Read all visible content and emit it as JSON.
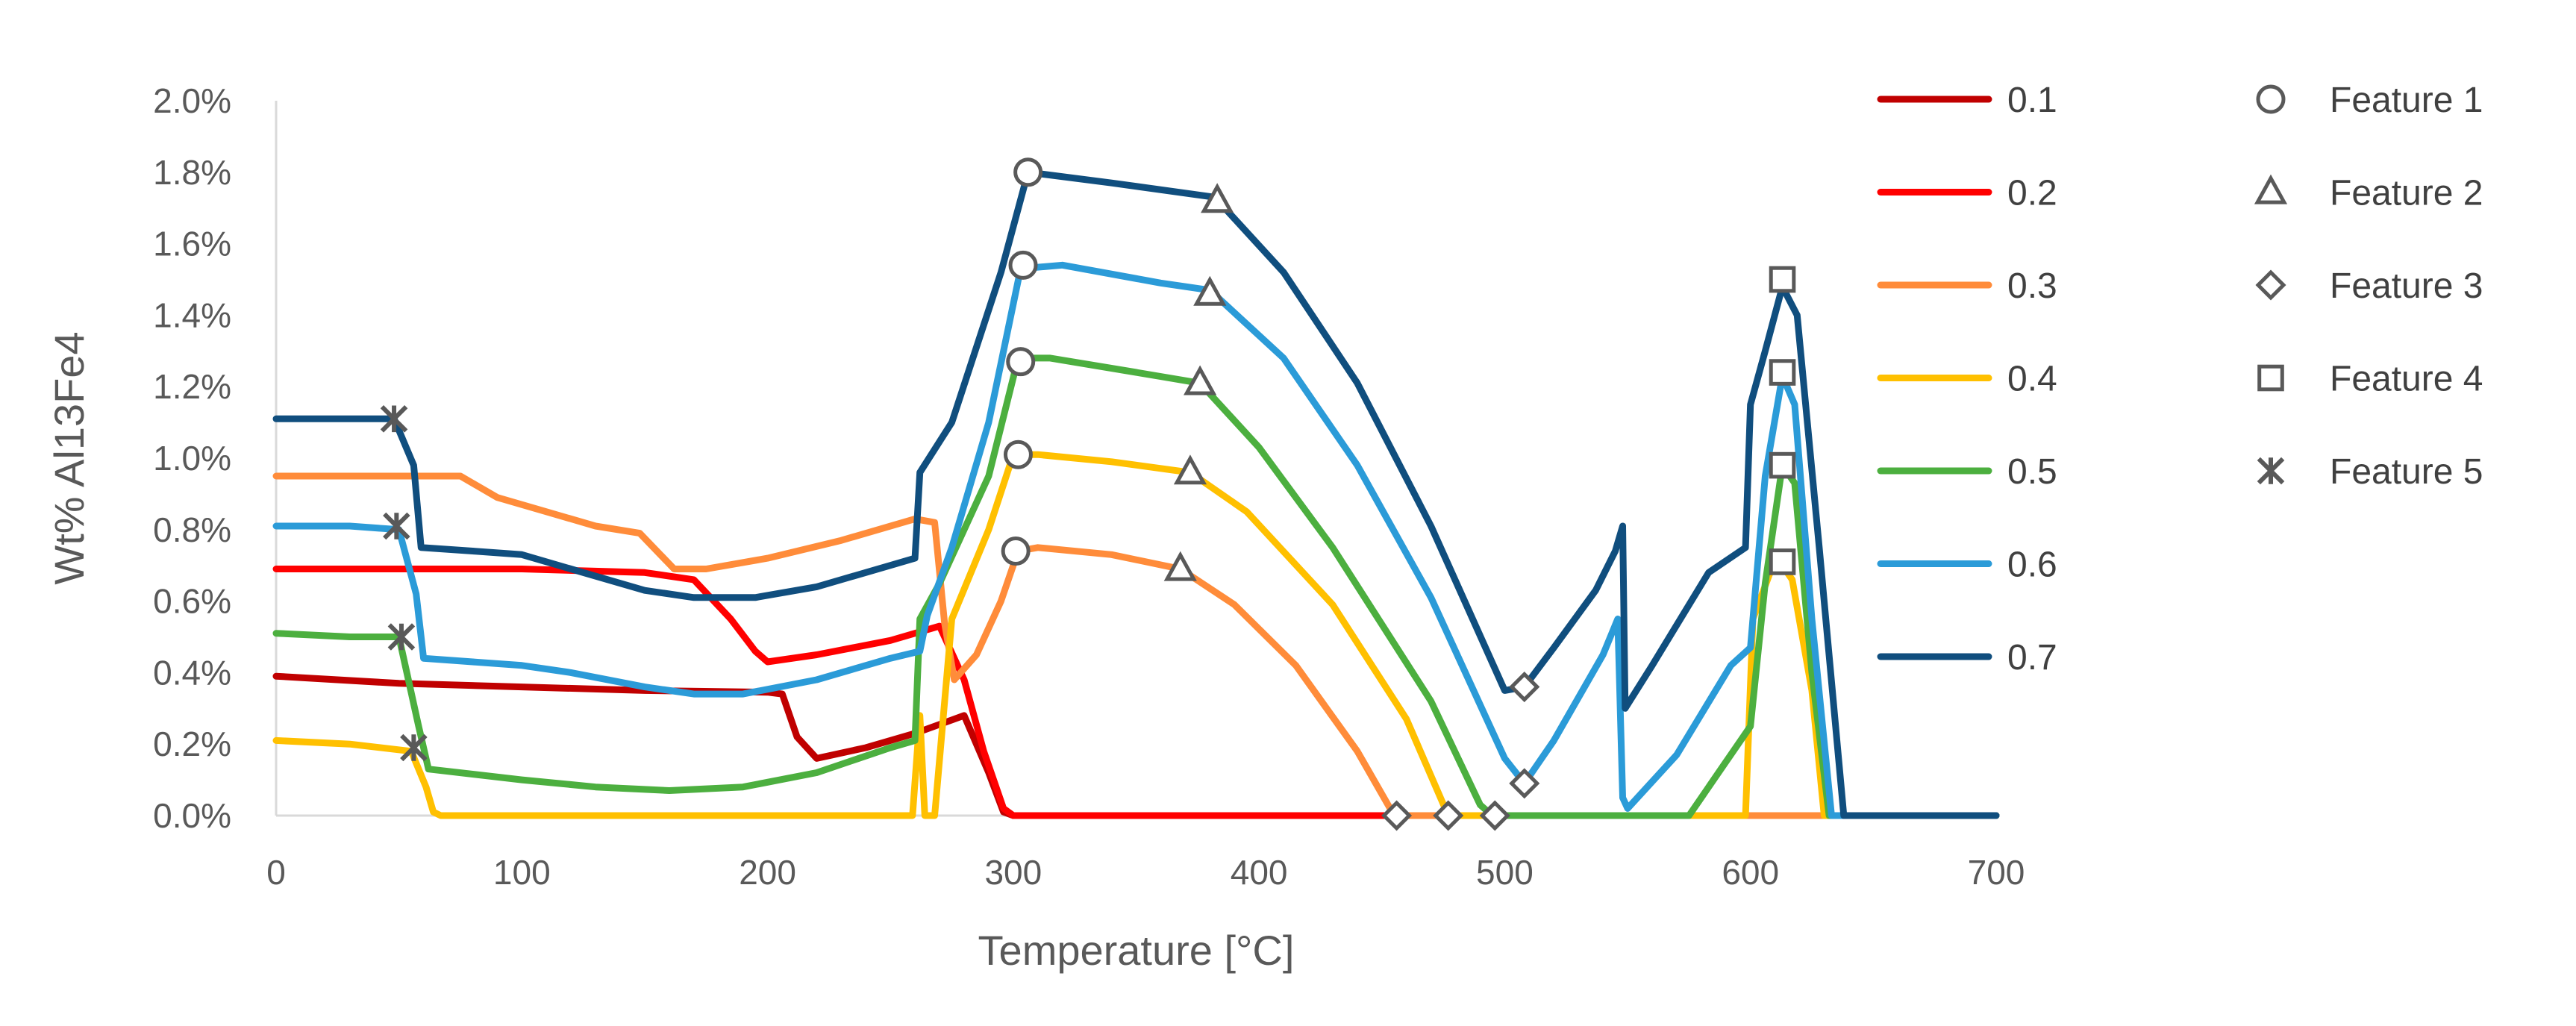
{
  "chart_data": {
    "type": "line",
    "title": "",
    "xlabel": "Temperature [°C]",
    "ylabel": "Wt% Al13Fe4",
    "xlim": [
      0,
      700
    ],
    "ylim": [
      0,
      0.02
    ],
    "xticks": [
      0,
      100,
      200,
      300,
      400,
      500,
      600,
      700
    ],
    "xtick_labels": [
      "0",
      "100",
      "200",
      "300",
      "400",
      "500",
      "600",
      "700"
    ],
    "yticks": [
      0,
      0.002,
      0.004,
      0.006,
      0.008,
      0.01,
      0.012,
      0.014,
      0.016,
      0.018,
      0.02
    ],
    "ytick_labels": [
      "0.0%",
      "0.2%",
      "0.4%",
      "0.6%",
      "0.8%",
      "1.0%",
      "1.2%",
      "1.4%",
      "1.6%",
      "1.8%",
      "2.0%"
    ],
    "grid": false,
    "legend_position": "right",
    "series": [
      {
        "name": "0.1",
        "color": "#c00000",
        "points": [
          [
            0,
            0.0039
          ],
          [
            50,
            0.0037
          ],
          [
            100,
            0.0036
          ],
          [
            150,
            0.0035
          ],
          [
            200,
            0.00345
          ],
          [
            206,
            0.0034
          ],
          [
            212,
            0.0022
          ],
          [
            220,
            0.0016
          ],
          [
            240,
            0.0019
          ],
          [
            260,
            0.0023
          ],
          [
            280,
            0.0028
          ],
          [
            290,
            0.0012
          ],
          [
            296,
            0.0001
          ],
          [
            300,
            0
          ],
          [
            700,
            0
          ]
        ]
      },
      {
        "name": "0.2",
        "color": "#ff0000",
        "points": [
          [
            0,
            0.0069
          ],
          [
            50,
            0.0069
          ],
          [
            100,
            0.0069
          ],
          [
            150,
            0.0068
          ],
          [
            170,
            0.0066
          ],
          [
            185,
            0.0055
          ],
          [
            195,
            0.0046
          ],
          [
            200,
            0.0043
          ],
          [
            220,
            0.0045
          ],
          [
            250,
            0.0049
          ],
          [
            270,
            0.0053
          ],
          [
            280,
            0.0038
          ],
          [
            288,
            0.0018
          ],
          [
            296,
            0.0002
          ],
          [
            300,
            0
          ],
          [
            700,
            0
          ]
        ]
      },
      {
        "name": "0.3",
        "color": "#ff8c3a",
        "points": [
          [
            0,
            0.0095
          ],
          [
            60,
            0.0095
          ],
          [
            75,
            0.0095
          ],
          [
            90,
            0.0089
          ],
          [
            110,
            0.0085
          ],
          [
            130,
            0.0081
          ],
          [
            148,
            0.0079
          ],
          [
            162,
            0.0069
          ],
          [
            175,
            0.0069
          ],
          [
            200,
            0.0072
          ],
          [
            230,
            0.0077
          ],
          [
            260,
            0.0083
          ],
          [
            268,
            0.0082
          ],
          [
            272,
            0.0054
          ],
          [
            276,
            0.0038
          ],
          [
            285,
            0.0045
          ],
          [
            295,
            0.006
          ],
          [
            302,
            0.0074
          ],
          [
            310,
            0.0075
          ],
          [
            340,
            0.0073
          ],
          [
            368,
            0.0069
          ],
          [
            390,
            0.0059
          ],
          [
            415,
            0.0042
          ],
          [
            440,
            0.0018
          ],
          [
            455,
            0
          ],
          [
            600,
            0
          ],
          [
            613,
            0
          ],
          [
            635,
            0
          ],
          [
            700,
            0
          ]
        ]
      },
      {
        "name": "0.4",
        "color": "#ffc000",
        "points": [
          [
            0,
            0.0021
          ],
          [
            30,
            0.002
          ],
          [
            55,
            0.0018
          ],
          [
            61,
            0.0008
          ],
          [
            64,
            0.0001
          ],
          [
            67,
            0
          ],
          [
            75,
            0
          ],
          [
            259,
            0
          ],
          [
            262,
            0.0028
          ],
          [
            264,
            0.0
          ],
          [
            268,
            0
          ],
          [
            275,
            0.0055
          ],
          [
            290,
            0.008
          ],
          [
            300,
            0.0101
          ],
          [
            310,
            0.0101
          ],
          [
            340,
            0.0099
          ],
          [
            372,
            0.0096
          ],
          [
            395,
            0.0085
          ],
          [
            430,
            0.0059
          ],
          [
            460,
            0.0027
          ],
          [
            477,
            0
          ],
          [
            598,
            0
          ],
          [
            601,
            0.0055
          ],
          [
            608,
            0.0068
          ],
          [
            613,
            0.007
          ],
          [
            617,
            0.0066
          ],
          [
            625,
            0.0035
          ],
          [
            630,
            0
          ],
          [
            700,
            0
          ]
        ]
      },
      {
        "name": "0.5",
        "color": "#4caf3f",
        "points": [
          [
            0,
            0.0051
          ],
          [
            30,
            0.005
          ],
          [
            50,
            0.005
          ],
          [
            58,
            0.0025
          ],
          [
            62,
            0.0013
          ],
          [
            100,
            0.001
          ],
          [
            130,
            0.0008
          ],
          [
            160,
            0.0007
          ],
          [
            190,
            0.0008
          ],
          [
            220,
            0.0012
          ],
          [
            250,
            0.0019
          ],
          [
            260,
            0.0021
          ],
          [
            262,
            0.0055
          ],
          [
            270,
            0.0065
          ],
          [
            290,
            0.0095
          ],
          [
            302,
            0.0128
          ],
          [
            315,
            0.0128
          ],
          [
            350,
            0.0124
          ],
          [
            376,
            0.0121
          ],
          [
            400,
            0.0103
          ],
          [
            430,
            0.0075
          ],
          [
            470,
            0.0032
          ],
          [
            490,
            0.0003
          ],
          [
            495,
            0
          ],
          [
            575,
            0
          ],
          [
            590,
            0.0015
          ],
          [
            600,
            0.0025
          ],
          [
            606,
            0.0065
          ],
          [
            613,
            0.0098
          ],
          [
            618,
            0.0093
          ],
          [
            625,
            0.004
          ],
          [
            632,
            0
          ],
          [
            700,
            0
          ]
        ]
      },
      {
        "name": "0.6",
        "color": "#2b9bd8",
        "points": [
          [
            0,
            0.0081
          ],
          [
            30,
            0.0081
          ],
          [
            50,
            0.008
          ],
          [
            57,
            0.0062
          ],
          [
            60,
            0.0044
          ],
          [
            80,
            0.0043
          ],
          [
            100,
            0.0042
          ],
          [
            120,
            0.004
          ],
          [
            150,
            0.0036
          ],
          [
            170,
            0.0034
          ],
          [
            190,
            0.0034
          ],
          [
            220,
            0.0038
          ],
          [
            250,
            0.0044
          ],
          [
            262,
            0.0046
          ],
          [
            265,
            0.0056
          ],
          [
            275,
            0.0075
          ],
          [
            290,
            0.011
          ],
          [
            303,
            0.0153
          ],
          [
            320,
            0.0154
          ],
          [
            360,
            0.0149
          ],
          [
            380,
            0.0147
          ],
          [
            410,
            0.0128
          ],
          [
            440,
            0.0098
          ],
          [
            470,
            0.0061
          ],
          [
            500,
            0.0016
          ],
          [
            508,
            0.0009
          ],
          [
            520,
            0.0021
          ],
          [
            540,
            0.0045
          ],
          [
            546,
            0.0055
          ],
          [
            548,
            0.0005
          ],
          [
            550,
            0.0002
          ],
          [
            570,
            0.0017
          ],
          [
            592,
            0.0042
          ],
          [
            600,
            0.0047
          ],
          [
            606,
            0.0095
          ],
          [
            613,
            0.0123
          ],
          [
            618,
            0.0115
          ],
          [
            625,
            0.0055
          ],
          [
            633,
            0
          ],
          [
            700,
            0
          ]
        ]
      },
      {
        "name": "0.7",
        "color": "#104e7e",
        "points": [
          [
            0,
            0.0111
          ],
          [
            30,
            0.0111
          ],
          [
            48,
            0.0111
          ],
          [
            56,
            0.0098
          ],
          [
            59,
            0.0075
          ],
          [
            80,
            0.0074
          ],
          [
            100,
            0.0073
          ],
          [
            120,
            0.0069
          ],
          [
            150,
            0.0063
          ],
          [
            170,
            0.0061
          ],
          [
            195,
            0.0061
          ],
          [
            220,
            0.0064
          ],
          [
            250,
            0.007
          ],
          [
            260,
            0.0072
          ],
          [
            262,
            0.0096
          ],
          [
            275,
            0.011
          ],
          [
            295,
            0.0152
          ],
          [
            306,
            0.018
          ],
          [
            340,
            0.0177
          ],
          [
            382,
            0.0173
          ],
          [
            410,
            0.0152
          ],
          [
            440,
            0.0121
          ],
          [
            470,
            0.0081
          ],
          [
            500,
            0.0035
          ],
          [
            508,
            0.0036
          ],
          [
            520,
            0.0047
          ],
          [
            537,
            0.0063
          ],
          [
            545,
            0.0074
          ],
          [
            548,
            0.0081
          ],
          [
            549,
            0.003
          ],
          [
            560,
            0.0042
          ],
          [
            583,
            0.0068
          ],
          [
            598,
            0.0075
          ],
          [
            600,
            0.0115
          ],
          [
            606,
            0.013
          ],
          [
            613,
            0.0148
          ],
          [
            619,
            0.014
          ],
          [
            628,
            0.0075
          ],
          [
            638,
            0
          ],
          [
            700,
            0
          ]
        ]
      }
    ],
    "features": [
      {
        "name": "Feature 1",
        "symbol": "circle",
        "points": [
          [
            306,
            0.018
          ],
          [
            304,
            0.0154
          ],
          [
            303,
            0.0127
          ],
          [
            302,
            0.0101
          ],
          [
            301,
            0.0074
          ]
        ]
      },
      {
        "name": "Feature 2",
        "symbol": "triangle",
        "points": [
          [
            383,
            0.0172
          ],
          [
            380,
            0.0146
          ],
          [
            376,
            0.0121
          ],
          [
            372,
            0.0096
          ],
          [
            368,
            0.0069
          ]
        ]
      },
      {
        "name": "Feature 3",
        "symbol": "diamond",
        "points": [
          [
            508,
            0.0036
          ],
          [
            508,
            0.0009
          ],
          [
            496,
            0
          ],
          [
            477,
            0
          ],
          [
            456,
            0
          ]
        ]
      },
      {
        "name": "Feature 4",
        "symbol": "square",
        "points": [
          [
            613,
            0.015
          ],
          [
            613,
            0.0124
          ],
          [
            613,
            0.0098
          ],
          [
            613,
            0.0071
          ]
        ]
      },
      {
        "name": "Feature 5",
        "symbol": "asterisk",
        "points": [
          [
            48,
            0.0111
          ],
          [
            49,
            0.0081
          ],
          [
            51,
            0.005
          ],
          [
            56,
            0.0019
          ]
        ]
      }
    ]
  }
}
